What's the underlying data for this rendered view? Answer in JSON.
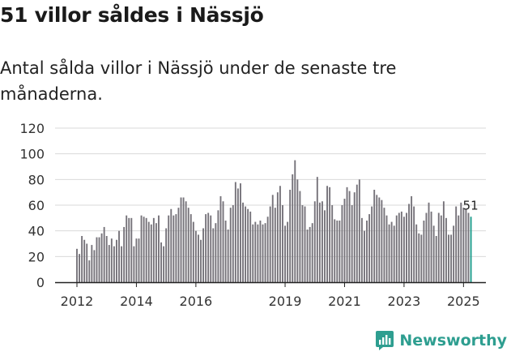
{
  "header": {
    "title": "51 villor såldes i Nässjö",
    "subtitle": "Antal sålda villor i Nässjö under de senaste tre månaderna."
  },
  "brand": {
    "name": "Newsworthy"
  },
  "colors": {
    "bar": "#76737a",
    "highlight": "#1f9c8c",
    "grid": "#d9d9d9",
    "text": "#333333"
  },
  "chart_data": {
    "type": "bar",
    "title": "Antal sålda villor i Nässjö",
    "xlabel": "",
    "ylabel": "",
    "ylim": [
      0,
      120
    ],
    "yticks": [
      0,
      20,
      40,
      60,
      80,
      100,
      120
    ],
    "xtick_labels": [
      "2012",
      "2014",
      "2016",
      "2019",
      "2021",
      "2023",
      "2025"
    ],
    "xtick_months": [
      0,
      24,
      48,
      84,
      108,
      132,
      156
    ],
    "start_label": "2012-01",
    "last_value_label": "51",
    "values": [
      26,
      22,
      36,
      33,
      30,
      17,
      29,
      25,
      35,
      35,
      38,
      43,
      36,
      29,
      34,
      28,
      33,
      40,
      28,
      43,
      52,
      50,
      50,
      28,
      34,
      34,
      52,
      51,
      50,
      47,
      45,
      50,
      46,
      52,
      31,
      28,
      42,
      52,
      57,
      52,
      53,
      58,
      66,
      66,
      63,
      58,
      53,
      47,
      40,
      37,
      33,
      42,
      53,
      54,
      52,
      42,
      46,
      56,
      67,
      63,
      48,
      41,
      58,
      60,
      78,
      73,
      77,
      62,
      59,
      57,
      55,
      45,
      47,
      45,
      48,
      45,
      46,
      51,
      59,
      68,
      58,
      70,
      75,
      60,
      44,
      47,
      72,
      84,
      95,
      80,
      71,
      60,
      59,
      41,
      43,
      46,
      63,
      82,
      62,
      63,
      56,
      75,
      74,
      60,
      49,
      48,
      48,
      60,
      65,
      74,
      71,
      60,
      70,
      76,
      80,
      50,
      40,
      48,
      53,
      59,
      72,
      68,
      66,
      64,
      58,
      52,
      45,
      47,
      44,
      52,
      54,
      55,
      51,
      54,
      61,
      67,
      59,
      45,
      38,
      37,
      48,
      54,
      62,
      55,
      44,
      36,
      54,
      52,
      63,
      50,
      37,
      37,
      44,
      59,
      52,
      62,
      58,
      57,
      54,
      51
    ]
  }
}
